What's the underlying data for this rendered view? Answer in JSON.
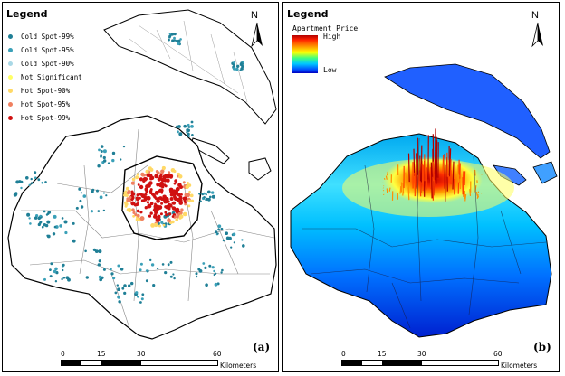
{
  "panel_a": {
    "legend_title": "Legend",
    "legend_items": [
      {
        "label": "Cold Spot-99%",
        "color": "#1f7f96"
      },
      {
        "label": "Cold Spot-95%",
        "color": "#3aa0b8"
      },
      {
        "label": "Cold Spot-90%",
        "color": "#a9d8e6"
      },
      {
        "label": "Not Significant",
        "color": "#ffff66"
      },
      {
        "label": "Hot Spot-90%",
        "color": "#ffd966"
      },
      {
        "label": "Hot Spot-95%",
        "color": "#f08060"
      },
      {
        "label": "Hot Spot-99%",
        "color": "#d01010"
      }
    ],
    "north": "N",
    "panel_label": "(a)",
    "scale": {
      "ticks": [
        "0",
        "15",
        "30",
        "60"
      ],
      "unit": "Kilometers"
    }
  },
  "panel_b": {
    "legend_title": "Legend",
    "price_title": "Apartment Price",
    "high_label": "High",
    "low_label": "Low",
    "north": "N",
    "panel_label": "(b)",
    "scale": {
      "ticks": [
        "0",
        "15",
        "30",
        "60"
      ],
      "unit": "Kilometers"
    }
  }
}
